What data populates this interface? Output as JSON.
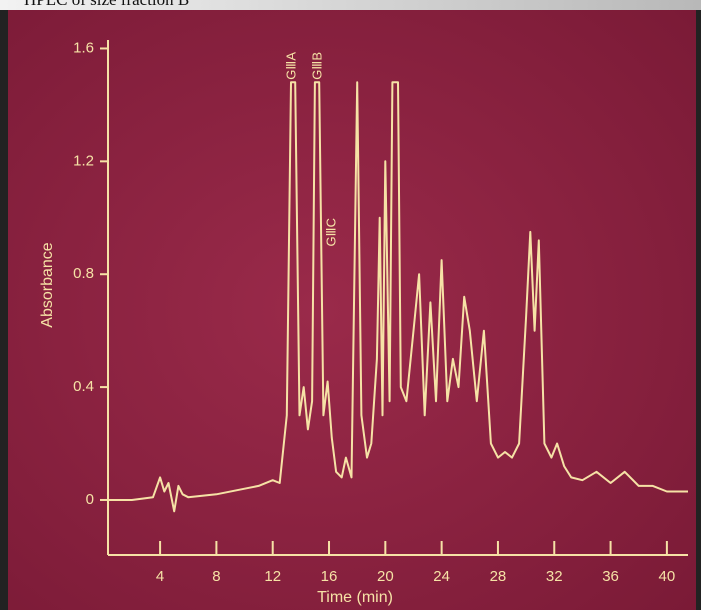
{
  "chart_data": {
    "type": "line",
    "title": "HPLC of size fraction B",
    "x_label": "Time (min)",
    "y_label": "Absorbance",
    "annotations": [
      "GⅢA",
      "GⅢB",
      "GⅢC"
    ],
    "x": [
      0.3,
      2,
      3.5,
      4,
      4.3,
      4.6,
      5,
      5.3,
      5.6,
      6,
      8,
      10,
      11,
      12,
      12.5,
      13,
      13.3,
      13.6,
      13.9,
      14.2,
      14.5,
      14.8,
      15.0,
      15.3,
      15.6,
      15.9,
      16.2,
      16.5,
      16.9,
      17.2,
      17.6,
      18.0,
      18.3,
      18.7,
      19.0,
      19.4,
      19.6,
      19.8,
      20.0,
      20.3,
      20.5,
      20.9,
      21.1,
      21.5,
      22,
      22.4,
      22.8,
      23.2,
      23.6,
      24,
      24.4,
      24.8,
      25.2,
      25.6,
      26,
      26.5,
      27,
      27.5,
      28,
      28.5,
      29,
      29.5,
      30,
      30.3,
      30.6,
      30.9,
      31.3,
      31.8,
      32.2,
      32.7,
      33.2,
      34,
      35,
      36,
      37,
      38,
      39,
      40,
      41.5
    ],
    "values": [
      0.0,
      0.0,
      0.01,
      0.08,
      0.03,
      0.06,
      -0.04,
      0.05,
      0.02,
      0.01,
      0.02,
      0.04,
      0.05,
      0.07,
      0.06,
      0.3,
      1.48,
      1.48,
      0.3,
      0.4,
      0.25,
      0.35,
      1.48,
      1.48,
      0.3,
      0.42,
      0.22,
      0.1,
      0.08,
      0.15,
      0.08,
      1.48,
      0.3,
      0.15,
      0.2,
      0.5,
      1.0,
      0.3,
      1.2,
      0.35,
      1.48,
      1.48,
      0.4,
      0.35,
      0.6,
      0.8,
      0.3,
      0.7,
      0.35,
      0.85,
      0.35,
      0.5,
      0.4,
      0.72,
      0.6,
      0.35,
      0.6,
      0.2,
      0.15,
      0.17,
      0.15,
      0.2,
      0.65,
      0.95,
      0.6,
      0.92,
      0.2,
      0.15,
      0.2,
      0.12,
      0.08,
      0.07,
      0.1,
      0.06,
      0.1,
      0.05,
      0.05,
      0.03,
      0.03
    ],
    "color": "#f6e2a6",
    "xlim": [
      0.3,
      41.5
    ],
    "ylim": [
      -0.195,
      1.63
    ],
    "xticks": [
      4,
      8,
      12,
      16,
      20,
      24,
      28,
      32,
      36,
      40
    ],
    "yticks": [
      0,
      0.4,
      0.8,
      1.2,
      1.6
    ],
    "grid": false
  }
}
